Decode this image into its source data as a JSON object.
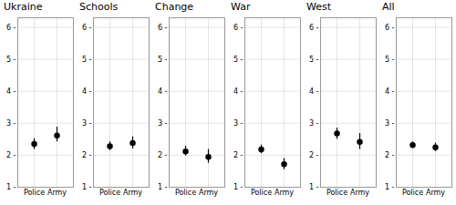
{
  "chart_data": [
    {
      "type": "scatter",
      "title": "Ukraine",
      "categories": [
        "Police",
        "Army"
      ],
      "values": [
        2.35,
        2.62
      ],
      "lower": [
        2.18,
        2.42
      ],
      "upper": [
        2.52,
        2.88
      ],
      "ylim": [
        1,
        6.3
      ],
      "yticks": [
        {
          "value": 1,
          "label": "1 -"
        },
        {
          "value": 2,
          "label": "2 -"
        },
        {
          "value": 3,
          "label": "3 -"
        },
        {
          "value": 4,
          "label": "4 -"
        },
        {
          "value": 5,
          "label": "5 -"
        },
        {
          "value": 6,
          "label": "6 -"
        }
      ],
      "grid": true,
      "color": "black",
      "marker": "circle"
    },
    {
      "type": "scatter",
      "title": "Schools",
      "categories": [
        "Police",
        "Army"
      ],
      "values": [
        2.28,
        2.38
      ],
      "lower": [
        2.15,
        2.2
      ],
      "upper": [
        2.42,
        2.58
      ],
      "ylim": [
        1,
        6.3
      ],
      "yticks": [
        {
          "value": 1,
          "label": "1 -"
        },
        {
          "value": 2,
          "label": "2 -"
        },
        {
          "value": 3,
          "label": "3 -"
        },
        {
          "value": 4,
          "label": "4 -"
        },
        {
          "value": 5,
          "label": "5 -"
        },
        {
          "value": 6,
          "label": "6 -"
        }
      ],
      "grid": true,
      "color": "black",
      "marker": "circle"
    },
    {
      "type": "scatter",
      "title": "Change",
      "categories": [
        "Police",
        "Army"
      ],
      "values": [
        2.12,
        1.95
      ],
      "lower": [
        1.98,
        1.75
      ],
      "upper": [
        2.28,
        2.18
      ],
      "ylim": [
        1,
        6.3
      ],
      "yticks": [
        {
          "value": 1,
          "label": "1 -"
        },
        {
          "value": 2,
          "label": "2 -"
        },
        {
          "value": 3,
          "label": "3 -"
        },
        {
          "value": 4,
          "label": "4 -"
        },
        {
          "value": 5,
          "label": "5 -"
        },
        {
          "value": 6,
          "label": "6 -"
        }
      ],
      "grid": true,
      "color": "black",
      "marker": "circle"
    },
    {
      "type": "scatter",
      "title": "War",
      "categories": [
        "Police",
        "Army"
      ],
      "values": [
        2.18,
        1.72
      ],
      "lower": [
        2.05,
        1.55
      ],
      "upper": [
        2.32,
        1.9
      ],
      "ylim": [
        1,
        6.3
      ],
      "yticks": [
        {
          "value": 1,
          "label": "1 -"
        },
        {
          "value": 2,
          "label": "2 -"
        },
        {
          "value": 3,
          "label": "3 -"
        },
        {
          "value": 4,
          "label": "4 -"
        },
        {
          "value": 5,
          "label": "5 -"
        },
        {
          "value": 6,
          "label": "6 -"
        }
      ],
      "grid": true,
      "color": "black",
      "marker": "circle"
    },
    {
      "type": "scatter",
      "title": "West",
      "categories": [
        "Police",
        "Army"
      ],
      "values": [
        2.68,
        2.42
      ],
      "lower": [
        2.5,
        2.18
      ],
      "upper": [
        2.85,
        2.68
      ],
      "ylim": [
        1,
        6.3
      ],
      "yticks": [
        {
          "value": 1,
          "label": "1 -"
        },
        {
          "value": 2,
          "label": "2 -"
        },
        {
          "value": 3,
          "label": "3 -"
        },
        {
          "value": 4,
          "label": "4 -"
        },
        {
          "value": 5,
          "label": "5 -"
        },
        {
          "value": 6,
          "label": "6 -"
        }
      ],
      "grid": true,
      "color": "black",
      "marker": "circle"
    },
    {
      "type": "scatter",
      "title": "All",
      "categories": [
        "Police",
        "Army"
      ],
      "values": [
        2.32,
        2.25
      ],
      "lower": [
        2.22,
        2.12
      ],
      "upper": [
        2.42,
        2.38
      ],
      "ylim": [
        1,
        6.3
      ],
      "yticks": [
        {
          "value": 1,
          "label": "1 -"
        },
        {
          "value": 2,
          "label": "2 -"
        },
        {
          "value": 3,
          "label": "3 -"
        },
        {
          "value": 4,
          "label": "4 -"
        },
        {
          "value": 5,
          "label": "5 -"
        },
        {
          "value": 6,
          "label": "6 -"
        }
      ],
      "grid": true,
      "color": "black",
      "marker": "circle"
    }
  ]
}
